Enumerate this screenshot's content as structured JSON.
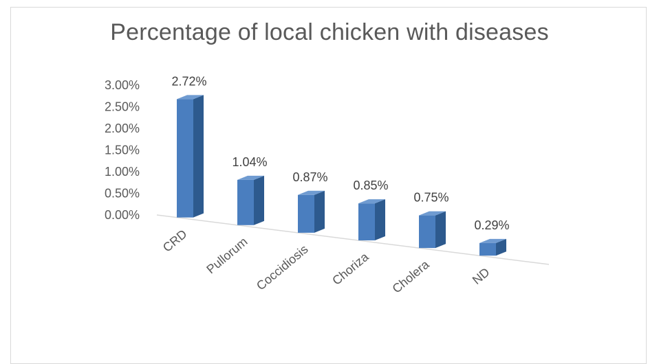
{
  "chart_data": {
    "type": "bar",
    "title": "Percentage of local chicken with diseases",
    "categories": [
      "CRD",
      "Pullorum",
      "Coccidiosis",
      "Choriza",
      "Cholera",
      "ND"
    ],
    "values": [
      2.72,
      1.04,
      0.87,
      0.85,
      0.75,
      0.29
    ],
    "data_labels": [
      "2.72%",
      "1.04%",
      "0.87%",
      "0.85%",
      "0.75%",
      "0.29%"
    ],
    "yticks": [
      "3.00%",
      "2.50%",
      "2.00%",
      "1.50%",
      "1.00%",
      "0.50%",
      "0.00%"
    ],
    "ylim": [
      0,
      3
    ],
    "grid": false,
    "legend": "none",
    "style": "3d-column",
    "colors": {
      "front": "#4a7ebf",
      "side": "#2d5a8e",
      "top": "#6f9bd1",
      "axis": "#d9d9d9"
    }
  }
}
